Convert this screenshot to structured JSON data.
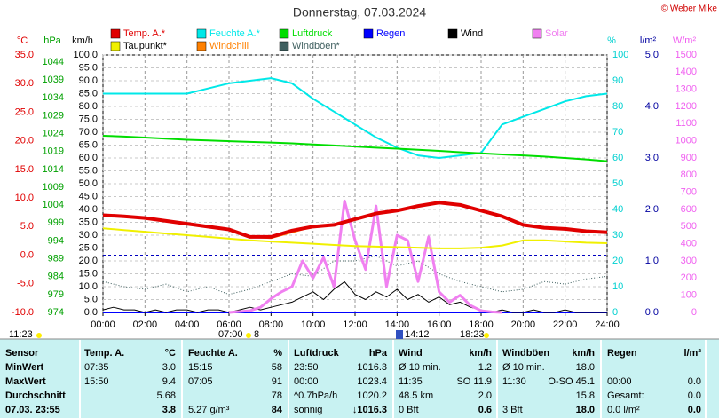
{
  "chart_data": {
    "type": "line",
    "title": "Donnerstag, 07.03.2024",
    "copyright": "© Weber Mike",
    "xlim": [
      0,
      24
    ],
    "xticks": [
      {
        "value": 0,
        "label": "00:00"
      },
      {
        "value": 2,
        "label": "02:00"
      },
      {
        "value": 4,
        "label": "04:00"
      },
      {
        "value": 6,
        "label": "06:00"
      },
      {
        "value": 8,
        "label": "08:00"
      },
      {
        "value": 10,
        "label": "10:00"
      },
      {
        "value": 12,
        "label": "12:00"
      },
      {
        "value": 14,
        "label": "14:00"
      },
      {
        "value": 16,
        "label": "16:00"
      },
      {
        "value": 18,
        "label": "18:00"
      },
      {
        "value": 20,
        "label": "20:00"
      },
      {
        "value": 22,
        "label": "22:00"
      },
      {
        "value": 24,
        "label": "24:00"
      }
    ],
    "grid": true,
    "axes": [
      {
        "unit": "°C",
        "color": "#e00000",
        "lim": [
          -10,
          35
        ],
        "ticks": [
          {
            "value": -10,
            "label": "-10.0"
          },
          {
            "value": -5,
            "label": "-5.0"
          },
          {
            "value": 0,
            "label": "0.0"
          },
          {
            "value": 5,
            "label": "5.0"
          },
          {
            "value": 10,
            "label": "10.0"
          },
          {
            "value": 15,
            "label": "15.0"
          },
          {
            "value": 20,
            "label": "20.0"
          },
          {
            "value": 25,
            "label": "25.0"
          },
          {
            "value": 30,
            "label": "30.0"
          },
          {
            "value": 35,
            "label": "35.0"
          }
        ]
      },
      {
        "unit": "hPa",
        "color": "#00a000",
        "lim": [
          974,
          1046
        ],
        "ticks": [
          974,
          979,
          984,
          989,
          994,
          999,
          1004,
          1009,
          1014,
          1019,
          1024,
          1029,
          1034,
          1039,
          1044
        ]
      },
      {
        "unit": "km/h",
        "color": "#000000",
        "lim": [
          0,
          100
        ],
        "ticks": [
          {
            "value": 0,
            "label": "0.0"
          },
          {
            "value": 5,
            "label": "5.0"
          },
          {
            "value": 10,
            "label": "10.0"
          },
          {
            "value": 15,
            "label": "15.0"
          },
          {
            "value": 20,
            "label": "20.0"
          },
          {
            "value": 25,
            "label": "25.0"
          },
          {
            "value": 30,
            "label": "30.0"
          },
          {
            "value": 35,
            "label": "35.0"
          },
          {
            "value": 40,
            "label": "40.0"
          },
          {
            "value": 45,
            "label": "45.0"
          },
          {
            "value": 50,
            "label": "50.0"
          },
          {
            "value": 55,
            "label": "55.0"
          },
          {
            "value": 60,
            "label": "60.0"
          },
          {
            "value": 65,
            "label": "65.0"
          },
          {
            "value": 70,
            "label": "70.0"
          },
          {
            "value": 75,
            "label": "75.0"
          },
          {
            "value": 80,
            "label": "80.0"
          },
          {
            "value": 85,
            "label": "85.0"
          },
          {
            "value": 90,
            "label": "90.0"
          },
          {
            "value": 95,
            "label": "95.0"
          },
          {
            "value": 100,
            "label": "100.0"
          }
        ]
      },
      {
        "unit": "%",
        "color": "#00d0d0",
        "lim": [
          0,
          100
        ],
        "ticks": [
          0,
          10,
          20,
          30,
          40,
          50,
          60,
          70,
          80,
          90,
          100
        ]
      },
      {
        "unit": "l/m²",
        "color": "#0000a0",
        "lim": [
          0,
          5
        ],
        "ticks": [
          {
            "value": 0,
            "label": "0.0"
          },
          {
            "value": 1,
            "label": "1.0"
          },
          {
            "value": 2,
            "label": "2.0"
          },
          {
            "value": 3,
            "label": "3.0"
          },
          {
            "value": 4,
            "label": "4.0"
          },
          {
            "value": 5,
            "label": "5.0"
          }
        ]
      },
      {
        "unit": "W/m²",
        "color": "#f060f0",
        "lim": [
          0,
          1500
        ],
        "ticks": [
          0,
          100,
          200,
          300,
          400,
          500,
          600,
          700,
          800,
          900,
          1000,
          1100,
          1200,
          1300,
          1400,
          1500
        ]
      }
    ],
    "x": [
      0,
      1,
      2,
      3,
      4,
      5,
      6,
      7,
      8,
      9,
      10,
      11,
      12,
      13,
      14,
      15,
      16,
      17,
      18,
      19,
      20,
      21,
      22,
      23,
      24
    ],
    "series": [
      {
        "name": "Temp. A.*",
        "color": "#e00000",
        "axis": 0,
        "values": [
          7.0,
          6.8,
          6.5,
          6.0,
          5.5,
          5.0,
          4.5,
          3.2,
          3.2,
          4.3,
          5.0,
          5.3,
          6.3,
          7.3,
          7.8,
          8.6,
          9.2,
          8.8,
          7.8,
          6.8,
          5.3,
          4.8,
          4.6,
          4.2,
          4.0
        ]
      },
      {
        "name": "Feuchte A.*",
        "color": "#00e8e8",
        "axis": 3,
        "values": [
          85,
          85,
          85,
          85,
          85,
          87,
          89,
          90,
          91,
          89,
          83,
          78,
          73,
          68,
          64,
          61,
          60,
          61,
          62,
          73,
          76,
          79,
          82,
          84,
          85
        ]
      },
      {
        "name": "Luftdruck",
        "color": "#00dd00",
        "axis": 1,
        "values": [
          1023.4,
          1023.2,
          1022.9,
          1022.6,
          1022.3,
          1022.1,
          1021.9,
          1021.7,
          1021.5,
          1021.3,
          1021.0,
          1020.7,
          1020.4,
          1020.1,
          1019.8,
          1019.5,
          1019.2,
          1018.8,
          1018.5,
          1018.2,
          1017.9,
          1017.6,
          1017.2,
          1016.8,
          1016.3
        ]
      },
      {
        "name": "Regen",
        "color": "#0000ff",
        "axis": 4,
        "values": [
          0,
          0,
          0,
          0,
          0,
          0,
          0,
          0,
          0,
          0,
          0,
          0,
          0,
          0,
          0,
          0,
          0,
          0,
          0,
          0,
          0,
          0,
          0,
          0,
          0
        ]
      },
      {
        "name": "Wind",
        "color": "#000000",
        "axis": 2,
        "x": [
          0,
          0.5,
          1,
          1.5,
          2,
          2.5,
          3,
          3.5,
          4,
          4.5,
          5,
          5.5,
          6,
          6.5,
          7,
          7.5,
          8,
          8.5,
          9,
          9.5,
          10,
          10.5,
          11,
          11.5,
          12,
          12.5,
          13,
          13.5,
          14,
          14.5,
          15,
          15.5,
          16,
          16.5,
          17,
          17.5,
          18,
          18.5,
          19,
          19.5,
          20,
          20.5,
          21,
          21.5,
          22,
          22.5,
          23,
          23.5,
          24
        ],
        "values": [
          1,
          2,
          1,
          1,
          0,
          1,
          0,
          1,
          1,
          0,
          1,
          1,
          0,
          1,
          2,
          1,
          2,
          3,
          4,
          6,
          8,
          5,
          9,
          11.9,
          7,
          5,
          8,
          6,
          9,
          5,
          7,
          4,
          6,
          3,
          4,
          2,
          1,
          0,
          1,
          0,
          0,
          1,
          0,
          0,
          1,
          0,
          0,
          0,
          0
        ]
      },
      {
        "name": "Solar",
        "color": "#f080f0",
        "axis": 5,
        "x": [
          6,
          6.5,
          7,
          7.5,
          8,
          8.5,
          9,
          9.5,
          10,
          10.5,
          11,
          11.5,
          12,
          12.5,
          13,
          13.5,
          14,
          14.5,
          15,
          15.5,
          16,
          16.5,
          17,
          17.5,
          18,
          18.5,
          19
        ],
        "values": [
          0,
          5,
          10,
          30,
          80,
          120,
          150,
          300,
          200,
          320,
          150,
          650,
          420,
          250,
          620,
          150,
          450,
          420,
          180,
          440,
          120,
          60,
          100,
          40,
          10,
          3,
          0
        ]
      },
      {
        "name": "Taupunkt*",
        "color": "#f0f000",
        "axis": 0,
        "values": [
          4.7,
          4.4,
          4.1,
          3.8,
          3.5,
          3.2,
          2.9,
          2.6,
          2.4,
          2.2,
          2.0,
          1.8,
          1.6,
          1.5,
          1.4,
          1.3,
          1.2,
          1.2,
          1.3,
          1.7,
          2.6,
          2.6,
          2.4,
          2.2,
          2.1
        ]
      },
      {
        "name": "Windchill",
        "color": "#ff8000",
        "axis": 0,
        "values": [
          7.0,
          6.8,
          6.5,
          6.0,
          5.5,
          5.0,
          4.5,
          3.2,
          3.0,
          4.0,
          5.0,
          5.3,
          6.3,
          7.3,
          7.8,
          8.6,
          9.2,
          8.8,
          7.8,
          6.8,
          5.3,
          4.8,
          4.6,
          4.2,
          4.0
        ]
      },
      {
        "name": "Windböen*",
        "color": "#406060",
        "axis": 2,
        "values": [
          12,
          10,
          9,
          11,
          8,
          10,
          7,
          9,
          12,
          15,
          14,
          20,
          20,
          22,
          18,
          20,
          15,
          12,
          10,
          8,
          9,
          12,
          11,
          13,
          14
        ]
      }
    ],
    "annotations": [
      "11:23",
      "07:00",
      "8",
      "14:12",
      "18:23"
    ]
  },
  "table": {
    "header": [
      "Sensor",
      "Temp. A.",
      "°C",
      "Feuchte A.",
      "%",
      "Luftdruck",
      "hPa",
      "Wind",
      "km/h",
      "Windböen",
      "km/h",
      "Regen",
      "l/m²"
    ],
    "rows": [
      [
        "MinWert",
        "07:35",
        "3.0",
        "15:15",
        "58",
        "23:50",
        "1016.3",
        "Ø 10 min.",
        "1.2",
        "Ø 10 min.",
        "18.0",
        "",
        ""
      ],
      [
        "MaxWert",
        "15:50",
        "9.4",
        "07:05",
        "91",
        "00:00",
        "1023.4",
        "11:35",
        "SO 11.9",
        "11:30",
        "O-SO 45.1",
        "00:00",
        "0.0"
      ],
      [
        "Durchschnitt",
        "",
        "5.68",
        "",
        "78",
        "^0.7hPa/h",
        "1020.2",
        "48.5 km",
        "2.0",
        "",
        "15.8",
        "Gesamt:",
        "0.0"
      ],
      [
        "07.03. 23:55",
        "",
        "3.8",
        "5.27 g/m³",
        "84",
        "sonnig",
        "↓1016.3",
        "0 Bft",
        "0.6",
        "3 Bft",
        "18.0",
        "0.0 l/m²",
        "0.0"
      ]
    ]
  }
}
